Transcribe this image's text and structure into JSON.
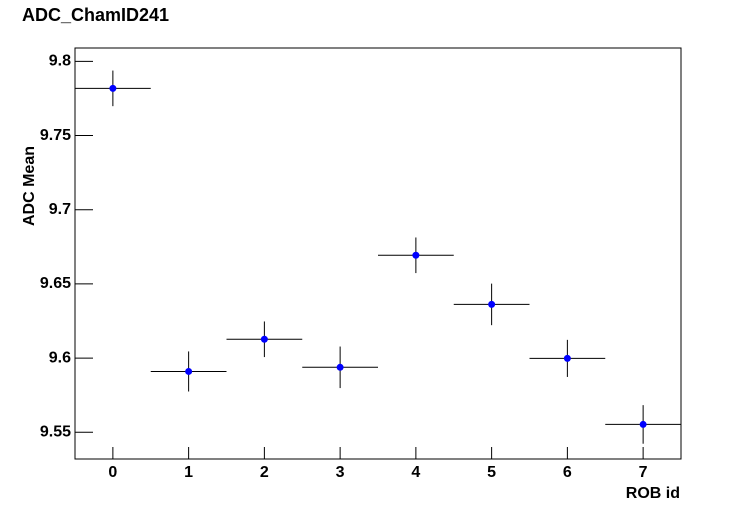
{
  "chart_data": {
    "type": "errorbar",
    "title": "ADC_ChamID241",
    "x_label": "ROB id",
    "y_label": "ADC Mean",
    "x": [
      0,
      1,
      2,
      3,
      4,
      5,
      6,
      7
    ],
    "values": [
      9.7818,
      9.591,
      9.6127,
      9.5938,
      9.6693,
      9.6362,
      9.5998,
      9.5553
    ],
    "yerr": [
      0.012,
      0.0135,
      0.012,
      0.014,
      0.012,
      0.014,
      0.0125,
      0.013
    ],
    "xerr": [
      0.5,
      0.5,
      0.5,
      0.5,
      0.5,
      0.5,
      0.5,
      0.5
    ],
    "color": "#0000ff",
    "xlim": [
      -0.5,
      7.5
    ],
    "xticks": [
      0,
      1,
      2,
      3,
      4,
      5,
      6,
      7
    ],
    "ylim": [
      9.532,
      9.809
    ],
    "yticks": [
      9.55,
      9.6,
      9.65,
      9.7,
      9.75,
      9.8
    ]
  }
}
